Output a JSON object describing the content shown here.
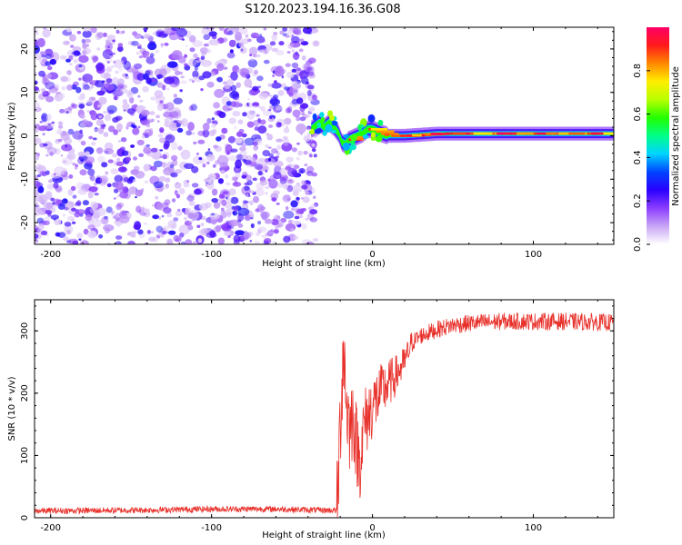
{
  "title": "S120.2023.194.16.36.G08",
  "chart_data": [
    {
      "type": "heatmap",
      "xlabel": "Height of straight line (km)",
      "ylabel": "Frequency (Hz)",
      "xlim": [
        -210,
        150
      ],
      "ylim": [
        -25,
        25
      ],
      "xticks": [
        -200,
        -100,
        0,
        100
      ],
      "yticks": [
        -20,
        -10,
        0,
        10,
        20
      ],
      "colorbar": {
        "label": "Normalized spectral amplitude",
        "range": [
          0,
          1
        ],
        "ticks": [
          0.0,
          0.2,
          0.4,
          0.6,
          0.8
        ],
        "colormap": [
          "#ffffff",
          "#c9a6f5",
          "#8b3dff",
          "#2a00ff",
          "#0044ff",
          "#00d4ff",
          "#00ff88",
          "#22ff00",
          "#b8ff00",
          "#ffee00",
          "#ff8800",
          "#ff1a1a",
          "#ff0066"
        ]
      },
      "noise_region_x": [
        -210,
        -35
      ],
      "frequency_trace": {
        "x": [
          -38,
          -33,
          -30,
          -27,
          -24,
          -21,
          -19,
          -17,
          -15,
          -12,
          -9,
          -6,
          -3,
          0,
          3,
          6,
          10,
          20,
          40,
          60,
          80,
          100,
          120,
          150
        ],
        "y": [
          1.5,
          3.0,
          2.0,
          3.0,
          2.0,
          0.5,
          -1.5,
          -2.0,
          -1.0,
          -0.5,
          0.0,
          0.5,
          1.5,
          1.5,
          1.0,
          0.5,
          0.0,
          0.0,
          0.5,
          0.5,
          0.5,
          0.5,
          0.5,
          0.5
        ],
        "peak_amplitude": 0.9
      }
    },
    {
      "type": "line",
      "xlabel": "Height of straight line (km)",
      "ylabel": "SNR (10 * v/v)",
      "xlim": [
        -210,
        150
      ],
      "ylim": [
        0,
        350
      ],
      "xticks": [
        -200,
        -100,
        0,
        100
      ],
      "yticks": [
        0,
        100,
        200,
        300
      ],
      "color": "#e8302a",
      "series": [
        {
          "x": [
            -210,
            -150,
            -100,
            -60,
            -30,
            -22,
            -20,
            -18,
            -16,
            -14,
            -12,
            -10,
            -8,
            -5,
            0,
            5,
            10,
            15,
            20,
            25,
            30,
            40,
            50,
            60,
            80,
            100,
            120,
            150
          ],
          "y": [
            9,
            10,
            12,
            12,
            10,
            10,
            150,
            280,
            180,
            140,
            170,
            120,
            90,
            150,
            180,
            200,
            215,
            230,
            250,
            285,
            295,
            305,
            312,
            315,
            318,
            318,
            318,
            316
          ]
        }
      ]
    }
  ]
}
